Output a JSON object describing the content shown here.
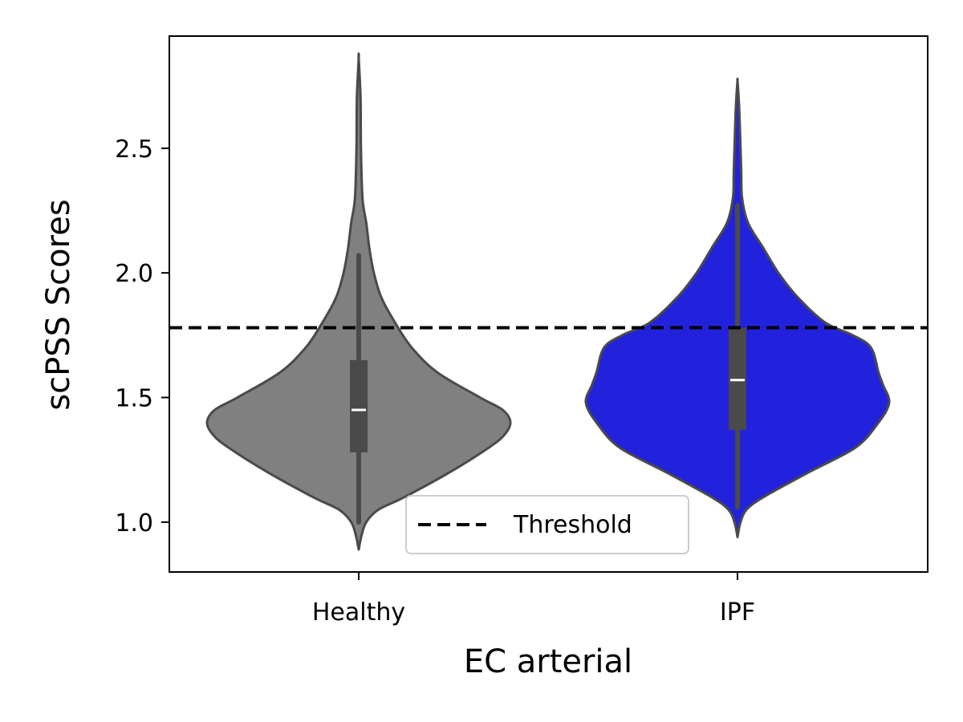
{
  "chart_data": {
    "type": "violin",
    "title": "",
    "xlabel": "EC arterial",
    "ylabel": "scPSS Scores",
    "ylim": [
      0.8,
      2.95
    ],
    "yticks": [
      1.0,
      1.5,
      2.0,
      2.5
    ],
    "ytick_labels": [
      "1.0",
      "1.5",
      "2.0",
      "2.5"
    ],
    "categories": [
      "Healthy",
      "IPF"
    ],
    "colors": [
      "#808080",
      "#2222dd"
    ],
    "edge_color": "#4a4a4a",
    "violins": [
      {
        "category": "Healthy",
        "min": 0.89,
        "max": 2.86,
        "q1": 1.28,
        "median": 1.45,
        "q3": 1.65,
        "whisker_low": 1.0,
        "whisker_high": 2.07,
        "density": [
          [
            0.89,
            0.0
          ],
          [
            0.95,
            0.02
          ],
          [
            1.0,
            0.05
          ],
          [
            1.05,
            0.13
          ],
          [
            1.1,
            0.3
          ],
          [
            1.2,
            0.6
          ],
          [
            1.3,
            0.86
          ],
          [
            1.35,
            0.96
          ],
          [
            1.4,
            1.0
          ],
          [
            1.45,
            0.95
          ],
          [
            1.5,
            0.8
          ],
          [
            1.6,
            0.52
          ],
          [
            1.7,
            0.35
          ],
          [
            1.8,
            0.24
          ],
          [
            1.9,
            0.15
          ],
          [
            2.0,
            0.1
          ],
          [
            2.1,
            0.07
          ],
          [
            2.2,
            0.05
          ],
          [
            2.3,
            0.025
          ],
          [
            2.5,
            0.015
          ],
          [
            2.7,
            0.012
          ],
          [
            2.86,
            0.0
          ]
        ]
      },
      {
        "category": "IPF",
        "min": 0.94,
        "max": 2.77,
        "q1": 1.37,
        "median": 1.57,
        "q3": 1.78,
        "whisker_low": 1.06,
        "whisker_high": 2.27,
        "density": [
          [
            0.94,
            0.0
          ],
          [
            1.0,
            0.02
          ],
          [
            1.05,
            0.06
          ],
          [
            1.1,
            0.17
          ],
          [
            1.2,
            0.47
          ],
          [
            1.3,
            0.78
          ],
          [
            1.4,
            0.93
          ],
          [
            1.48,
            1.0
          ],
          [
            1.55,
            0.96
          ],
          [
            1.6,
            0.93
          ],
          [
            1.7,
            0.88
          ],
          [
            1.75,
            0.76
          ],
          [
            1.8,
            0.58
          ],
          [
            1.9,
            0.4
          ],
          [
            2.0,
            0.27
          ],
          [
            2.1,
            0.17
          ],
          [
            2.2,
            0.07
          ],
          [
            2.3,
            0.03
          ],
          [
            2.4,
            0.025
          ],
          [
            2.5,
            0.02
          ],
          [
            2.6,
            0.015
          ],
          [
            2.7,
            0.008
          ],
          [
            2.77,
            0.0
          ]
        ]
      }
    ],
    "reference_lines": [
      {
        "name": "Threshold",
        "y": 1.78,
        "style": "dashed",
        "color": "#000000"
      }
    ],
    "legend": {
      "position": "bottom-center",
      "entries": [
        {
          "label": "Threshold",
          "style": "dashed",
          "color": "#000000"
        }
      ]
    }
  }
}
